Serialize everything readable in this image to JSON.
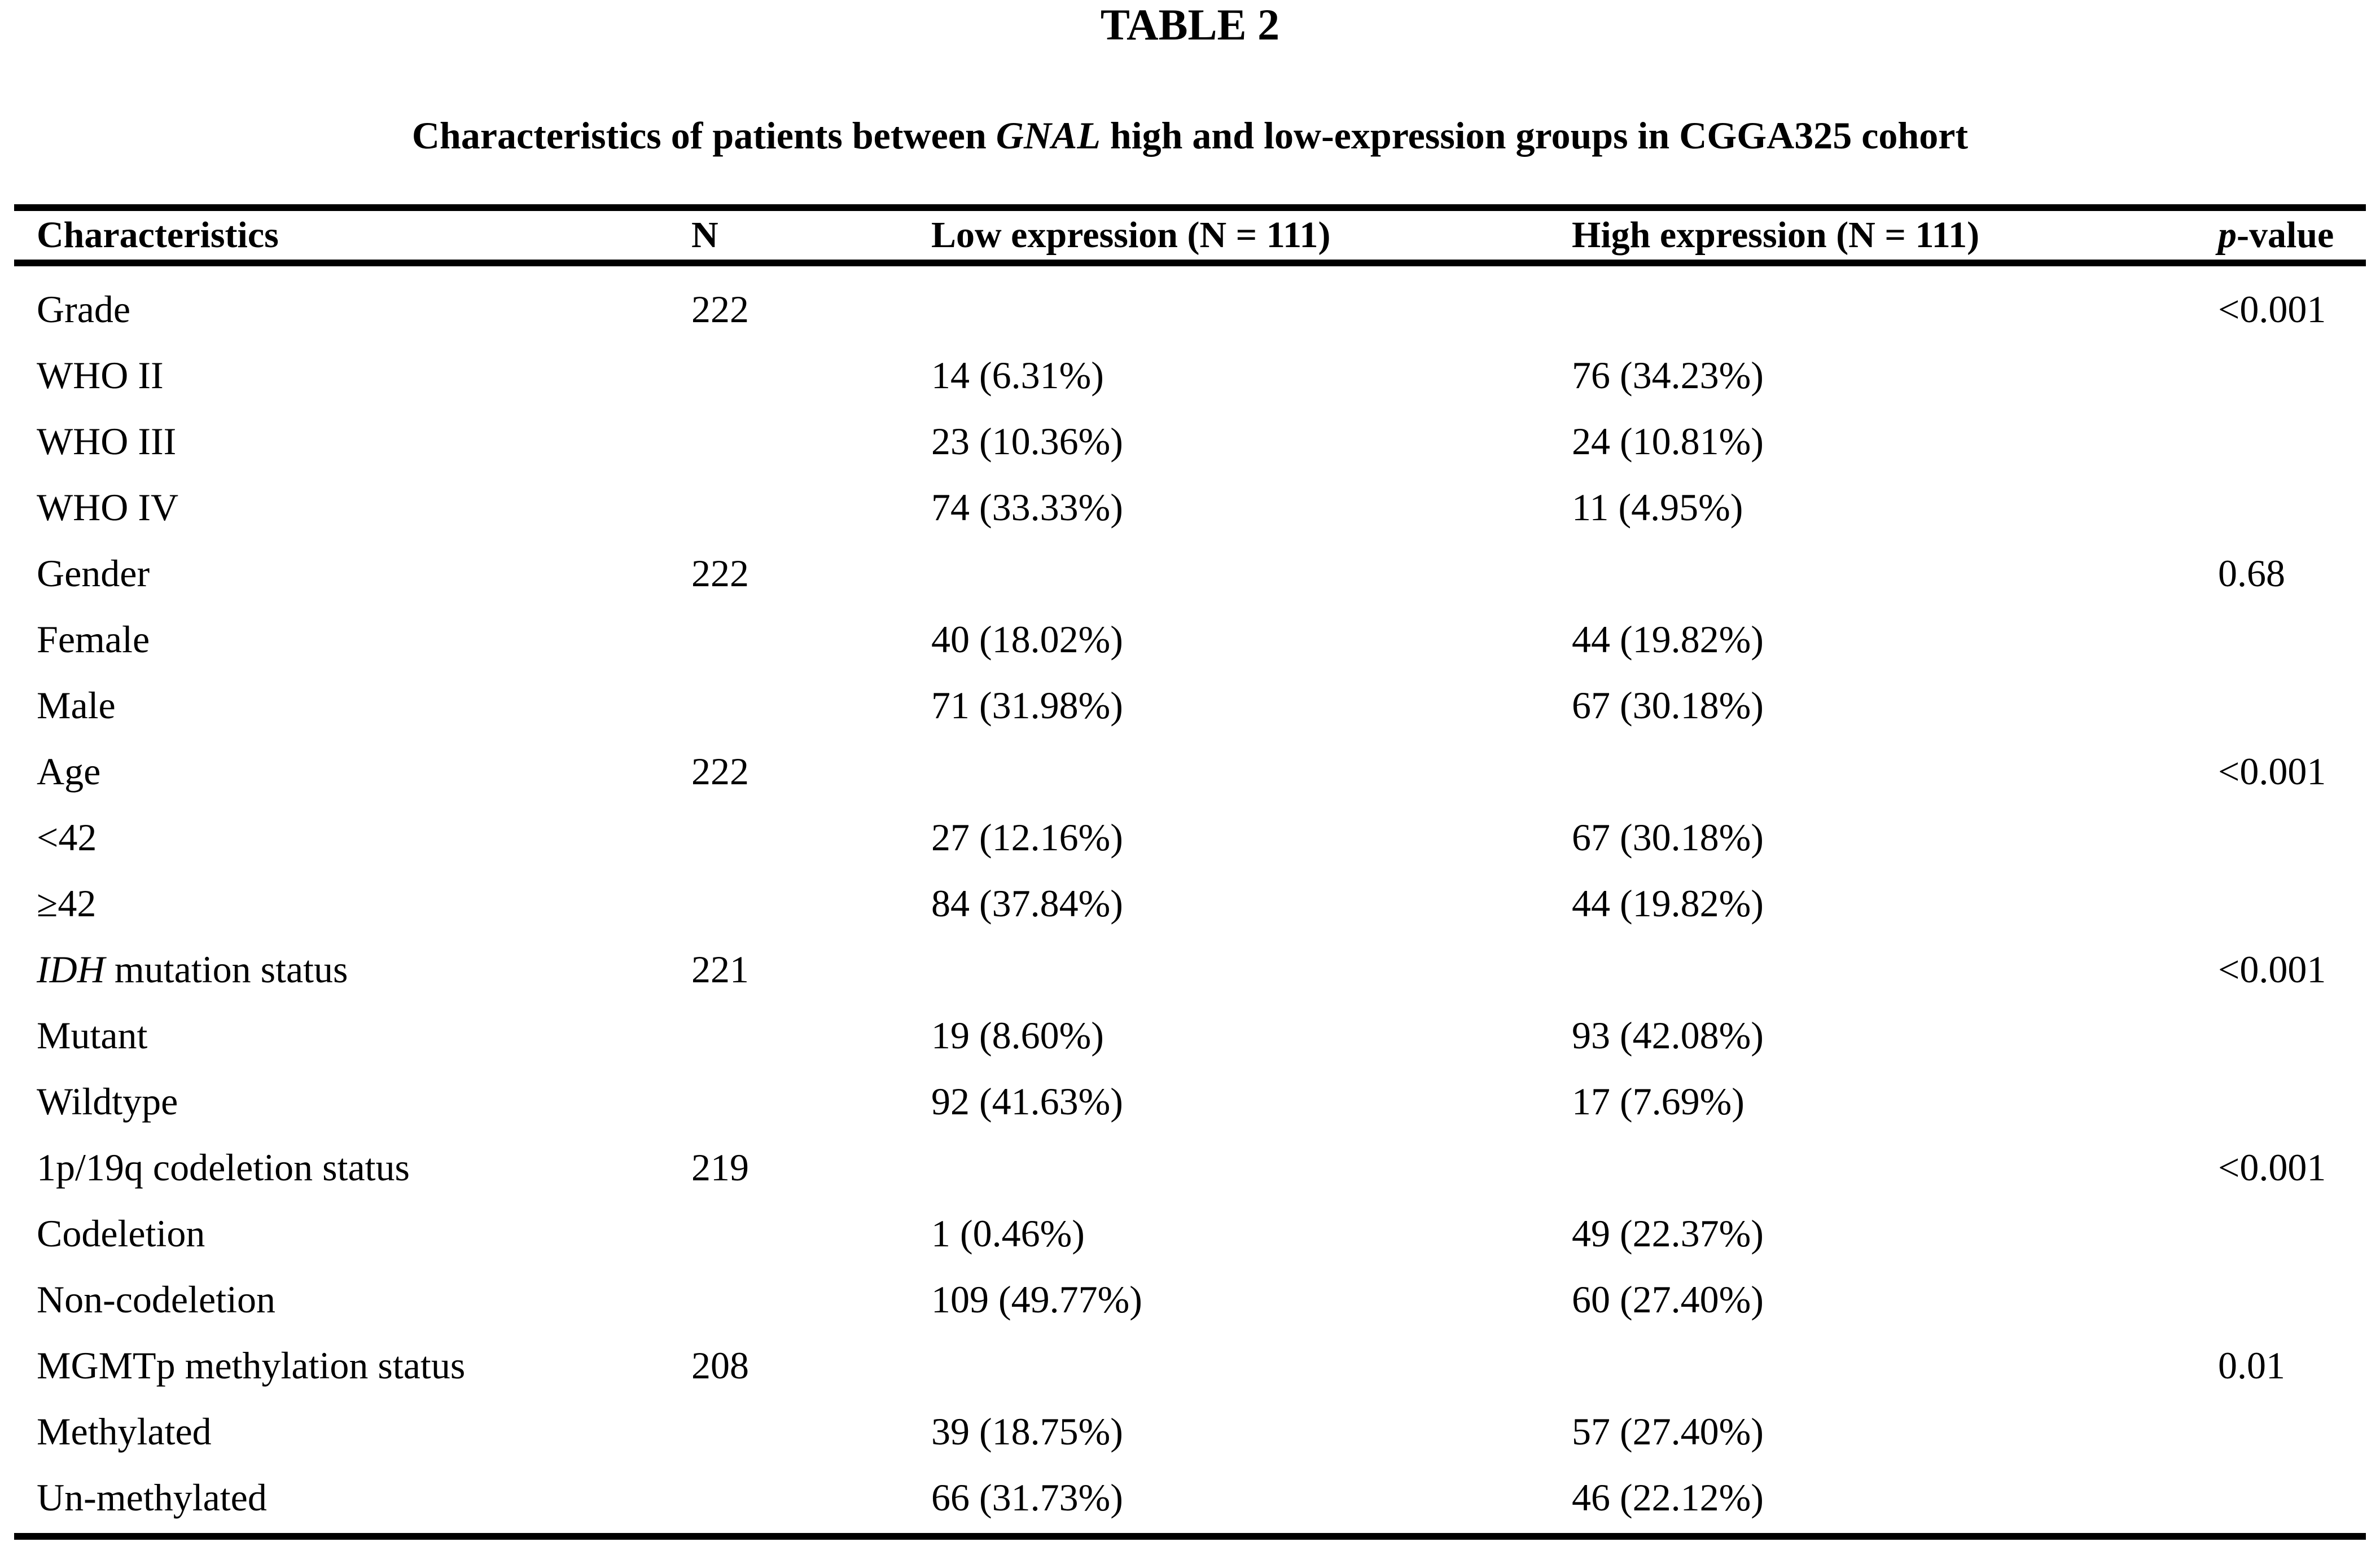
{
  "page": {
    "title": "TABLE 2"
  },
  "subtitle": {
    "pre": "Characteristics of patients between ",
    "italic": "GNAL",
    "post": " high and low-expression groups in CGGA325 cohort"
  },
  "table": {
    "columns": [
      {
        "key": "characteristics",
        "italic": "",
        "text": "Characteristics"
      },
      {
        "key": "n",
        "italic": "",
        "text": "N"
      },
      {
        "key": "low-expression",
        "italic": "",
        "text": "Low expression (N = 111)"
      },
      {
        "key": "high-expression",
        "italic": "",
        "text": "High expression (N = 111)"
      },
      {
        "key": "p-value",
        "italic": "p",
        "text": "-value"
      }
    ],
    "rows": [
      {
        "italic": "",
        "label": "Grade",
        "n": "222",
        "low": "",
        "high": "",
        "p": "<0.001"
      },
      {
        "italic": "",
        "label": "WHO II",
        "n": "",
        "low": "14 (6.31%)",
        "high": "76 (34.23%)",
        "p": ""
      },
      {
        "italic": "",
        "label": "WHO III",
        "n": "",
        "low": "23 (10.36%)",
        "high": "24 (10.81%)",
        "p": ""
      },
      {
        "italic": "",
        "label": "WHO IV",
        "n": "",
        "low": "74 (33.33%)",
        "high": "11 (4.95%)",
        "p": ""
      },
      {
        "italic": "",
        "label": "Gender",
        "n": "222",
        "low": "",
        "high": "",
        "p": "0.68"
      },
      {
        "italic": "",
        "label": "Female",
        "n": "",
        "low": "40 (18.02%)",
        "high": "44 (19.82%)",
        "p": ""
      },
      {
        "italic": "",
        "label": "Male",
        "n": "",
        "low": "71 (31.98%)",
        "high": "67 (30.18%)",
        "p": ""
      },
      {
        "italic": "",
        "label": "Age",
        "n": "222",
        "low": "",
        "high": "",
        "p": "<0.001"
      },
      {
        "italic": "",
        "label": "<42",
        "n": "",
        "low": "27 (12.16%)",
        "high": "67 (30.18%)",
        "p": ""
      },
      {
        "italic": "",
        "label": "≥42",
        "n": "",
        "low": "84 (37.84%)",
        "high": "44 (19.82%)",
        "p": ""
      },
      {
        "italic": "IDH",
        "label": " mutation status",
        "n": "221",
        "low": "",
        "high": "",
        "p": "<0.001"
      },
      {
        "italic": "",
        "label": "Mutant",
        "n": "",
        "low": "19 (8.60%)",
        "high": "93 (42.08%)",
        "p": ""
      },
      {
        "italic": "",
        "label": "Wildtype",
        "n": "",
        "low": "92 (41.63%)",
        "high": "17 (7.69%)",
        "p": ""
      },
      {
        "italic": "",
        "label": "1p/19q codeletion status",
        "n": "219",
        "low": "",
        "high": "",
        "p": "<0.001"
      },
      {
        "italic": "",
        "label": "Codeletion",
        "n": "",
        "low": "1 (0.46%)",
        "high": "49 (22.37%)",
        "p": ""
      },
      {
        "italic": "",
        "label": "Non-codeletion",
        "n": "",
        "low": "109 (49.77%)",
        "high": "60 (27.40%)",
        "p": ""
      },
      {
        "italic": "",
        "label": "MGMTp methylation status",
        "n": "208",
        "low": "",
        "high": "",
        "p": "0.01"
      },
      {
        "italic": "",
        "label": "Methylated",
        "n": "",
        "low": "39 (18.75%)",
        "high": "57 (27.40%)",
        "p": ""
      },
      {
        "italic": "",
        "label": "Un-methylated",
        "n": "",
        "low": "66 (31.73%)",
        "high": "46 (22.12%)",
        "p": ""
      }
    ]
  }
}
